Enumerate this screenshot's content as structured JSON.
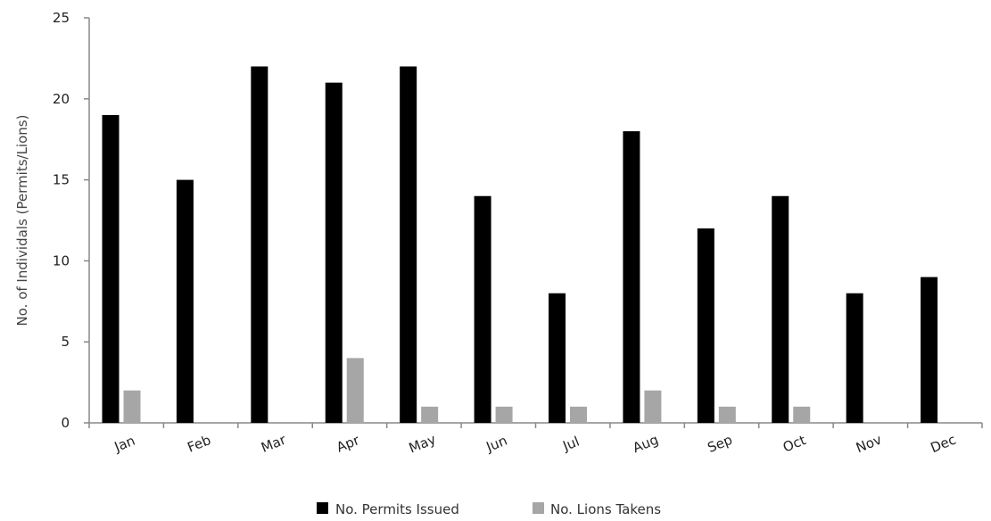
{
  "chart_data": {
    "type": "bar",
    "categories": [
      "Jan",
      "Feb",
      "Mar",
      "Apr",
      "May",
      "Jun",
      "Jul",
      "Aug",
      "Sep",
      "Oct",
      "Nov",
      "Dec"
    ],
    "series": [
      {
        "name": "No. Permits Issued",
        "color": "#000000",
        "values": [
          19,
          15,
          22,
          21,
          22,
          14,
          8,
          18,
          12,
          14,
          8,
          9
        ]
      },
      {
        "name": "No. Lions Takens",
        "color": "#a6a6a6",
        "values": [
          2,
          0,
          0,
          4,
          1,
          1,
          1,
          2,
          1,
          1,
          0,
          0
        ]
      }
    ],
    "title": "",
    "xlabel": "",
    "ylabel": "No. of Individals (Permits/Lions)",
    "ylim": [
      0,
      25
    ],
    "yticks": [
      "0",
      "5",
      "10",
      "15",
      "20",
      "25"
    ],
    "grid": false,
    "legend_position": "bottom"
  }
}
